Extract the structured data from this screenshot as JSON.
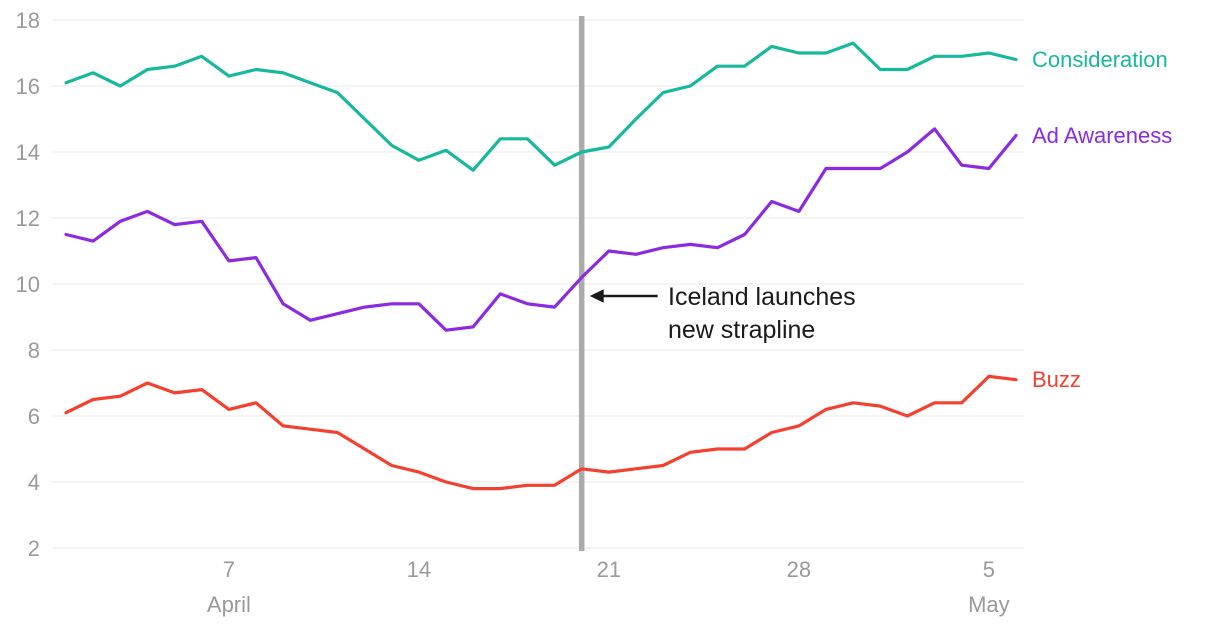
{
  "chart_data": {
    "type": "line",
    "title": "",
    "ylim": [
      2,
      18
    ],
    "y_ticks": [
      2,
      4,
      6,
      8,
      10,
      12,
      14,
      16,
      18
    ],
    "x_tick_labels": [
      {
        "index": 6,
        "label": "7"
      },
      {
        "index": 13,
        "label": "14"
      },
      {
        "index": 20,
        "label": "21"
      },
      {
        "index": 27,
        "label": "28"
      },
      {
        "index": 34,
        "label": "5"
      }
    ],
    "month_labels": [
      {
        "index": 6,
        "label": "April"
      },
      {
        "index": 34,
        "label": "May"
      }
    ],
    "categories": [
      "Apr 1",
      "Apr 2",
      "Apr 3",
      "Apr 4",
      "Apr 5",
      "Apr 6",
      "Apr 7",
      "Apr 8",
      "Apr 9",
      "Apr 10",
      "Apr 11",
      "Apr 12",
      "Apr 13",
      "Apr 14",
      "Apr 15",
      "Apr 16",
      "Apr 17",
      "Apr 18",
      "Apr 19",
      "Apr 20",
      "Apr 21",
      "Apr 22",
      "Apr 23",
      "Apr 24",
      "Apr 25",
      "Apr 26",
      "Apr 27",
      "Apr 28",
      "Apr 29",
      "Apr 30",
      "May 1",
      "May 2",
      "May 3",
      "May 4",
      "May 5",
      "May 6"
    ],
    "series": [
      {
        "name": "Consideration",
        "color": "#18b89c",
        "values": [
          16.1,
          16.4,
          16.0,
          16.5,
          16.6,
          16.9,
          16.3,
          16.5,
          16.4,
          16.1,
          15.8,
          15.0,
          14.2,
          13.75,
          14.05,
          13.45,
          14.4,
          14.4,
          13.6,
          14.0,
          14.15,
          15.0,
          15.8,
          16.0,
          16.6,
          16.6,
          17.2,
          17.0,
          17.0,
          17.3,
          16.5,
          16.5,
          16.9,
          16.9,
          17.0,
          16.8
        ]
      },
      {
        "name": "Ad Awareness",
        "color": "#8a2be2",
        "values": [
          11.5,
          11.3,
          11.9,
          12.2,
          11.8,
          11.9,
          10.7,
          10.8,
          9.4,
          8.9,
          9.1,
          9.3,
          9.4,
          9.4,
          8.6,
          8.7,
          9.7,
          9.4,
          9.3,
          10.2,
          11.0,
          10.9,
          11.1,
          11.2,
          11.1,
          11.5,
          12.5,
          12.2,
          13.5,
          13.5,
          13.5,
          14.0,
          14.7,
          13.6,
          13.5,
          14.5
        ]
      },
      {
        "name": "Buzz",
        "color": "#f4402e",
        "values": [
          6.1,
          6.5,
          6.6,
          7.0,
          6.7,
          6.8,
          6.2,
          6.4,
          5.7,
          5.6,
          5.5,
          5.0,
          4.5,
          4.3,
          4.0,
          3.8,
          3.8,
          3.9,
          3.9,
          4.4,
          4.3,
          4.4,
          4.5,
          4.9,
          5.0,
          5.0,
          5.5,
          5.7,
          6.2,
          6.4,
          6.3,
          6.0,
          6.4,
          6.4,
          7.2,
          7.1
        ]
      }
    ],
    "event_marker": {
      "index": 19,
      "color": "#ababab",
      "annotation_line1": "Iceland launches",
      "annotation_line2": "new strapline"
    },
    "grid": "horizontal",
    "legend_position": "right-of-line-ends",
    "style": {
      "background": "#ffffff",
      "grid_color": "#e8e8e8",
      "axis_label_color": "#9a9a9a",
      "annotation_color": "#1a1a1a"
    }
  }
}
